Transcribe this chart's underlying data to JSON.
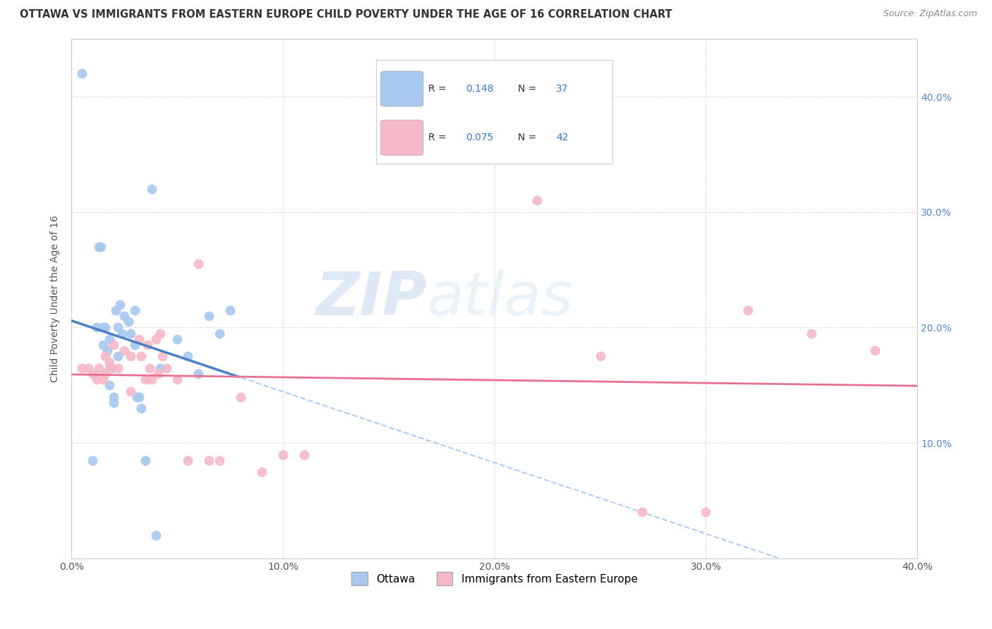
{
  "title": "OTTAWA VS IMMIGRANTS FROM EASTERN EUROPE CHILD POVERTY UNDER THE AGE OF 16 CORRELATION CHART",
  "source": "Source: ZipAtlas.com",
  "ylabel": "Child Poverty Under the Age of 16",
  "watermark_zip": "ZIP",
  "watermark_atlas": "atlas",
  "legend_label1": "Ottawa",
  "legend_label2": "Immigrants from Eastern Europe",
  "r1": "0.148",
  "n1": "37",
  "r2": "0.075",
  "n2": "42",
  "blue_scatter": "#A8C8F0",
  "pink_scatter": "#F5B8C8",
  "trendline_blue_solid": "#4A80C4",
  "trendline_blue_dashed": "#A8C8F0",
  "trendline_pink_solid": "#E87090",
  "background": "#FFFFFF",
  "grid_color": "#DDDDDD",
  "ottawa_x": [
    0.5,
    1.0,
    1.2,
    1.3,
    1.4,
    1.5,
    1.5,
    1.6,
    1.7,
    1.8,
    1.8,
    1.9,
    2.0,
    2.0,
    2.1,
    2.2,
    2.2,
    2.3,
    2.4,
    2.5,
    2.7,
    2.8,
    3.0,
    3.0,
    3.1,
    3.2,
    3.3,
    3.5,
    3.8,
    4.0,
    4.2,
    5.0,
    5.5,
    6.0,
    6.5,
    7.0,
    7.5
  ],
  "ottawa_y": [
    42.0,
    8.5,
    20.0,
    27.0,
    27.0,
    20.0,
    18.5,
    20.0,
    18.0,
    19.0,
    15.0,
    16.5,
    14.0,
    13.5,
    21.5,
    20.0,
    17.5,
    22.0,
    19.5,
    21.0,
    20.5,
    19.5,
    21.5,
    18.5,
    14.0,
    14.0,
    13.0,
    8.5,
    32.0,
    2.0,
    16.5,
    19.0,
    17.5,
    16.0,
    21.0,
    19.5,
    21.5
  ],
  "immigrant_x": [
    0.5,
    0.8,
    1.0,
    1.2,
    1.3,
    1.5,
    1.6,
    1.6,
    1.8,
    1.8,
    2.0,
    2.2,
    2.5,
    2.8,
    2.8,
    3.2,
    3.3,
    3.5,
    3.6,
    3.7,
    3.8,
    4.0,
    4.1,
    4.2,
    4.3,
    4.5,
    5.0,
    5.5,
    6.0,
    6.5,
    7.0,
    8.0,
    9.0,
    10.0,
    11.0,
    22.0,
    25.0,
    27.0,
    30.0,
    32.0,
    35.0,
    38.0
  ],
  "immigrant_y": [
    16.5,
    16.5,
    16.0,
    15.5,
    16.5,
    15.5,
    16.0,
    17.5,
    17.0,
    16.5,
    18.5,
    16.5,
    18.0,
    17.5,
    14.5,
    19.0,
    17.5,
    15.5,
    18.5,
    16.5,
    15.5,
    19.0,
    16.0,
    19.5,
    17.5,
    16.5,
    15.5,
    8.5,
    25.5,
    8.5,
    8.5,
    14.0,
    7.5,
    9.0,
    9.0,
    31.0,
    17.5,
    4.0,
    4.0,
    21.5,
    19.5,
    18.0
  ]
}
